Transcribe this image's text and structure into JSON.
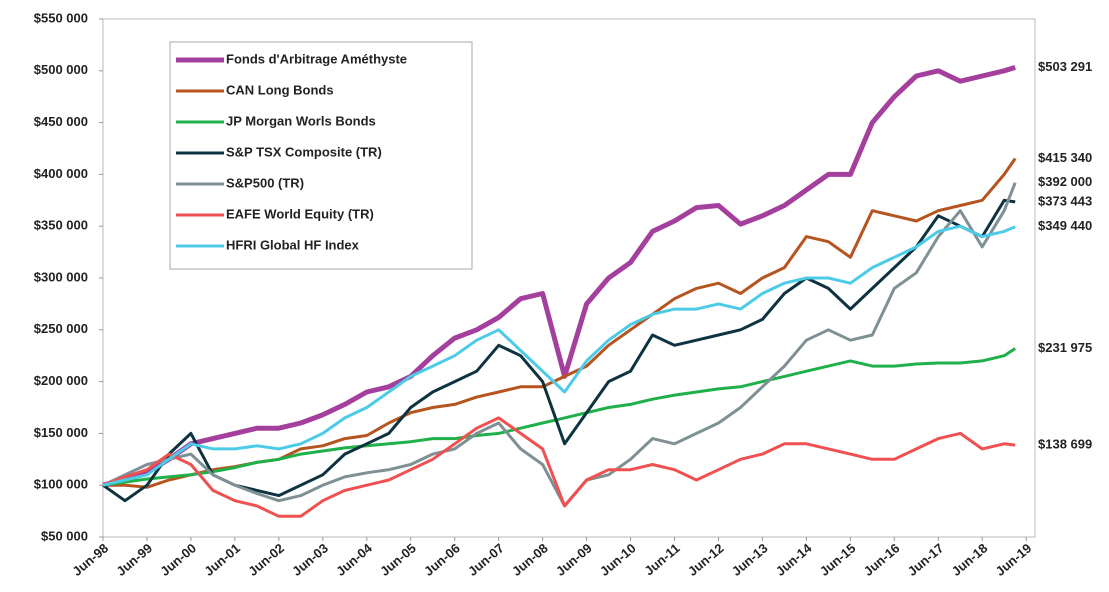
{
  "chart_data": {
    "type": "line",
    "x": [
      1998.5,
      1999,
      1999.5,
      2000,
      2000.5,
      2001,
      2001.5,
      2002,
      2002.5,
      2003,
      2003.5,
      2004,
      2004.5,
      2005,
      2005.5,
      2006,
      2006.5,
      2007,
      2007.5,
      2008,
      2008.5,
      2009,
      2009.5,
      2010,
      2010.5,
      2011,
      2011.5,
      2012,
      2012.5,
      2013,
      2013.5,
      2014,
      2014.5,
      2015,
      2015.5,
      2016,
      2016.5,
      2017,
      2017.5,
      2018,
      2018.5,
      2019,
      2019.25
    ],
    "xlim": [
      1998.5,
      2019.7
    ],
    "xticks": [
      {
        "value": 1998.5,
        "label": "Jun-98"
      },
      {
        "value": 1999.5,
        "label": "Jun-99"
      },
      {
        "value": 2000.5,
        "label": "Jun-00"
      },
      {
        "value": 2001.5,
        "label": "Jun-01"
      },
      {
        "value": 2002.5,
        "label": "Jun-02"
      },
      {
        "value": 2003.5,
        "label": "Jun-03"
      },
      {
        "value": 2004.5,
        "label": "Jun-04"
      },
      {
        "value": 2005.5,
        "label": "Jun-05"
      },
      {
        "value": 2006.5,
        "label": "Jun-06"
      },
      {
        "value": 2007.5,
        "label": "Jun-07"
      },
      {
        "value": 2008.5,
        "label": "Jun-08"
      },
      {
        "value": 2009.5,
        "label": "Jun-09"
      },
      {
        "value": 2010.5,
        "label": "Jun-10"
      },
      {
        "value": 2011.5,
        "label": "Jun-11"
      },
      {
        "value": 2012.5,
        "label": "Jun-12"
      },
      {
        "value": 2013.5,
        "label": "Jun-13"
      },
      {
        "value": 2014.5,
        "label": "Jun-14"
      },
      {
        "value": 2015.5,
        "label": "Jun-15"
      },
      {
        "value": 2016.5,
        "label": "Jun-16"
      },
      {
        "value": 2017.5,
        "label": "Jun-17"
      },
      {
        "value": 2018.5,
        "label": "Jun-18"
      },
      {
        "value": 2019.5,
        "label": "Jun-19"
      }
    ],
    "ylim": [
      50000,
      550000
    ],
    "yticks": [
      {
        "value": 50000,
        "label": "$50 000"
      },
      {
        "value": 100000,
        "label": "$100 000"
      },
      {
        "value": 150000,
        "label": "$150 000"
      },
      {
        "value": 200000,
        "label": "$200 000"
      },
      {
        "value": 250000,
        "label": "$250 000"
      },
      {
        "value": 300000,
        "label": "$300 000"
      },
      {
        "value": 350000,
        "label": "$350 000"
      },
      {
        "value": 400000,
        "label": "$400 000"
      },
      {
        "value": 450000,
        "label": "$450 000"
      },
      {
        "value": 500000,
        "label": "$500 000"
      },
      {
        "value": 550000,
        "label": "$550 000"
      }
    ],
    "legend": "upper left",
    "series": [
      {
        "name": "Fonds d'Arbitrage Améthyste",
        "color": "#a43f9e",
        "values": [
          100000,
          106000,
          112000,
          125000,
          140000,
          145000,
          150000,
          155000,
          155000,
          160000,
          168000,
          178000,
          190000,
          195000,
          205000,
          225000,
          242000,
          250000,
          262000,
          280000,
          285000,
          205000,
          275000,
          300000,
          315000,
          345000,
          355000,
          368000,
          370000,
          352000,
          360000,
          370000,
          385000,
          400000,
          400000,
          450000,
          475000,
          495000,
          500000,
          490000,
          495000,
          500000,
          503291
        ],
        "value_labels": [
          null,
          null,
          null,
          null,
          null,
          null,
          null,
          null,
          null,
          null,
          null,
          null,
          null,
          null,
          null,
          null,
          null,
          null,
          null,
          null,
          null,
          null,
          null,
          null,
          null,
          null,
          null,
          null,
          null,
          null,
          null,
          null,
          null,
          null,
          null,
          null,
          null,
          null,
          null,
          null,
          null,
          null,
          "$503 291"
        ]
      },
      {
        "name": "CAN Long Bonds",
        "color": "#b5541f",
        "values": [
          100000,
          100000,
          98000,
          105000,
          110000,
          115000,
          118000,
          122000,
          125000,
          135000,
          138000,
          145000,
          148000,
          160000,
          170000,
          175000,
          178000,
          185000,
          190000,
          195000,
          195000,
          205000,
          215000,
          235000,
          250000,
          265000,
          280000,
          290000,
          295000,
          285000,
          300000,
          310000,
          340000,
          335000,
          320000,
          365000,
          360000,
          355000,
          365000,
          370000,
          375000,
          400000,
          415340
        ],
        "value_labels": [
          null,
          null,
          null,
          null,
          null,
          null,
          null,
          null,
          null,
          null,
          null,
          null,
          null,
          null,
          null,
          null,
          null,
          null,
          null,
          null,
          null,
          null,
          null,
          null,
          null,
          null,
          null,
          null,
          null,
          null,
          null,
          null,
          null,
          null,
          null,
          null,
          null,
          null,
          null,
          null,
          null,
          null,
          "$415 340"
        ]
      },
      {
        "name": "JP Morgan Worls Bonds",
        "color": "#1fb04a",
        "values": [
          100000,
          103000,
          106000,
          108000,
          110000,
          113000,
          117000,
          122000,
          125000,
          130000,
          133000,
          136000,
          138000,
          140000,
          142000,
          145000,
          145000,
          148000,
          150000,
          155000,
          160000,
          165000,
          170000,
          175000,
          178000,
          183000,
          187000,
          190000,
          193000,
          195000,
          200000,
          205000,
          210000,
          215000,
          220000,
          215000,
          215000,
          217000,
          218000,
          218000,
          220000,
          225000,
          231975
        ],
        "value_labels": [
          null,
          null,
          null,
          null,
          null,
          null,
          null,
          null,
          null,
          null,
          null,
          null,
          null,
          null,
          null,
          null,
          null,
          null,
          null,
          null,
          null,
          null,
          null,
          null,
          null,
          null,
          null,
          null,
          null,
          null,
          null,
          null,
          null,
          null,
          null,
          null,
          null,
          null,
          null,
          null,
          null,
          null,
          "$231 975"
        ]
      },
      {
        "name": "S&P TSX Composite (TR)",
        "color": "#0d3340",
        "values": [
          100000,
          85000,
          100000,
          130000,
          150000,
          110000,
          100000,
          95000,
          90000,
          100000,
          110000,
          130000,
          140000,
          150000,
          175000,
          190000,
          200000,
          210000,
          235000,
          225000,
          200000,
          140000,
          170000,
          200000,
          210000,
          245000,
          235000,
          240000,
          245000,
          250000,
          260000,
          285000,
          300000,
          290000,
          270000,
          290000,
          310000,
          330000,
          360000,
          350000,
          340000,
          375000,
          373443
        ],
        "value_labels": [
          null,
          null,
          null,
          null,
          null,
          null,
          null,
          null,
          null,
          null,
          null,
          null,
          null,
          null,
          null,
          null,
          null,
          null,
          null,
          null,
          null,
          null,
          null,
          null,
          null,
          null,
          null,
          null,
          null,
          null,
          null,
          null,
          null,
          null,
          null,
          null,
          null,
          null,
          null,
          null,
          null,
          null,
          "$373 443"
        ]
      },
      {
        "name": "S&P500 (TR)",
        "color": "#7f9095",
        "values": [
          100000,
          110000,
          120000,
          125000,
          130000,
          110000,
          100000,
          92000,
          85000,
          90000,
          100000,
          108000,
          112000,
          115000,
          120000,
          130000,
          135000,
          150000,
          160000,
          135000,
          120000,
          80000,
          105000,
          110000,
          125000,
          145000,
          140000,
          150000,
          160000,
          175000,
          195000,
          215000,
          240000,
          250000,
          240000,
          245000,
          290000,
          305000,
          340000,
          365000,
          330000,
          365000,
          392000
        ],
        "value_labels": [
          null,
          null,
          null,
          null,
          null,
          null,
          null,
          null,
          null,
          null,
          null,
          null,
          null,
          null,
          null,
          null,
          null,
          null,
          null,
          null,
          null,
          null,
          null,
          null,
          null,
          null,
          null,
          null,
          null,
          null,
          null,
          null,
          null,
          null,
          null,
          null,
          null,
          null,
          null,
          null,
          null,
          null,
          "$392 000"
        ]
      },
      {
        "name": "EAFE World Equity (TR)",
        "color": "#f05050",
        "values": [
          100000,
          108000,
          115000,
          130000,
          120000,
          95000,
          85000,
          80000,
          70000,
          70000,
          85000,
          95000,
          100000,
          105000,
          115000,
          125000,
          140000,
          155000,
          165000,
          150000,
          135000,
          80000,
          105000,
          115000,
          115000,
          120000,
          115000,
          105000,
          115000,
          125000,
          130000,
          140000,
          140000,
          135000,
          130000,
          125000,
          125000,
          135000,
          145000,
          150000,
          135000,
          140000,
          138699
        ],
        "value_labels": [
          null,
          null,
          null,
          null,
          null,
          null,
          null,
          null,
          null,
          null,
          null,
          null,
          null,
          null,
          null,
          null,
          null,
          null,
          null,
          null,
          null,
          null,
          null,
          null,
          null,
          null,
          null,
          null,
          null,
          null,
          null,
          null,
          null,
          null,
          null,
          null,
          null,
          null,
          null,
          null,
          null,
          null,
          "$138 699"
        ]
      },
      {
        "name": "HFRI Global HF Index",
        "color": "#4ccbe8",
        "values": [
          100000,
          105000,
          110000,
          125000,
          140000,
          135000,
          135000,
          138000,
          135000,
          140000,
          150000,
          165000,
          175000,
          190000,
          205000,
          215000,
          225000,
          240000,
          250000,
          230000,
          210000,
          190000,
          220000,
          240000,
          255000,
          265000,
          270000,
          270000,
          275000,
          270000,
          285000,
          295000,
          300000,
          300000,
          295000,
          310000,
          320000,
          330000,
          345000,
          350000,
          340000,
          345000,
          349440
        ],
        "value_labels": [
          null,
          null,
          null,
          null,
          null,
          null,
          null,
          null,
          null,
          null,
          null,
          null,
          null,
          null,
          null,
          null,
          null,
          null,
          null,
          null,
          null,
          null,
          null,
          null,
          null,
          null,
          null,
          null,
          null,
          null,
          null,
          null,
          null,
          null,
          null,
          null,
          null,
          null,
          null,
          null,
          null,
          null,
          "$349 440"
        ]
      }
    ]
  }
}
